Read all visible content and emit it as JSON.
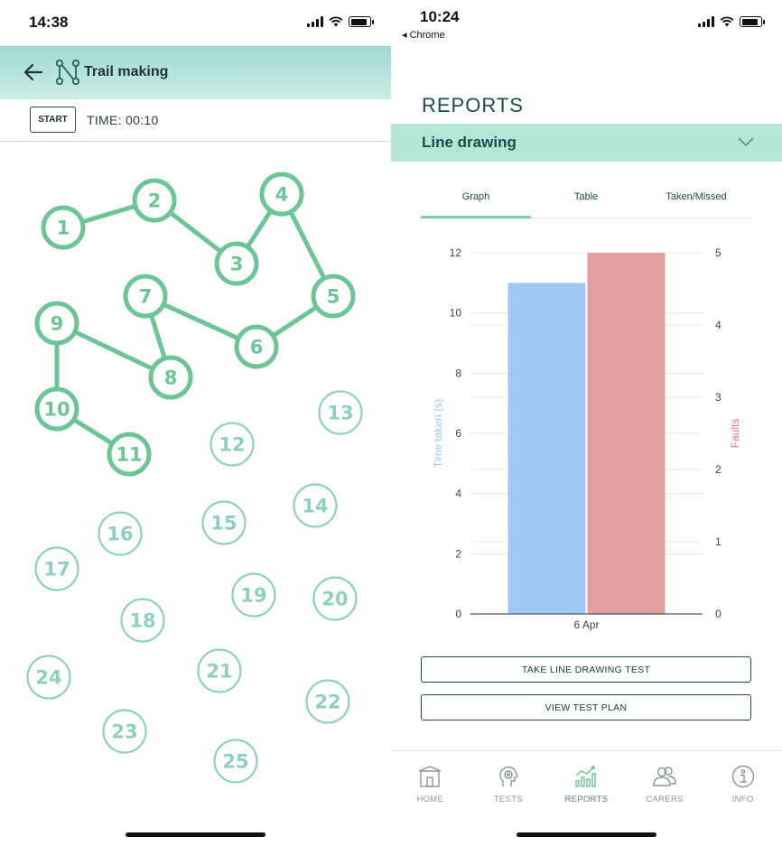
{
  "left_phone": {
    "status": {
      "time": "14:38"
    },
    "header": {
      "title": "Trail making"
    },
    "toolbar": {
      "start_label": "START",
      "timer_text": "TIME: 00:10"
    },
    "trail": {
      "connected_color": "#6cc497",
      "unconnected_color": "#8fcfc2",
      "nodes": [
        {
          "label": "1",
          "connected": true
        },
        {
          "label": "2",
          "connected": true
        },
        {
          "label": "3",
          "connected": true
        },
        {
          "label": "4",
          "connected": true
        },
        {
          "label": "5",
          "connected": true
        },
        {
          "label": "6",
          "connected": true
        },
        {
          "label": "7",
          "connected": true
        },
        {
          "label": "8",
          "connected": true
        },
        {
          "label": "9",
          "connected": true
        },
        {
          "label": "10",
          "connected": true
        },
        {
          "label": "11",
          "connected": true
        },
        {
          "label": "12",
          "connected": false
        },
        {
          "label": "13",
          "connected": false
        },
        {
          "label": "14",
          "connected": false
        },
        {
          "label": "15",
          "connected": false
        },
        {
          "label": "16",
          "connected": false
        },
        {
          "label": "17",
          "connected": false
        },
        {
          "label": "18",
          "connected": false
        },
        {
          "label": "19",
          "connected": false
        },
        {
          "label": "20",
          "connected": false
        },
        {
          "label": "21",
          "connected": false
        },
        {
          "label": "22",
          "connected": false
        },
        {
          "label": "23",
          "connected": false
        },
        {
          "label": "24",
          "connected": false
        },
        {
          "label": "25",
          "connected": false
        }
      ]
    }
  },
  "right_phone": {
    "status": {
      "time": "10:24",
      "back_app": "◂ Chrome"
    },
    "page_title": "REPORTS",
    "accordion": {
      "label": "Line drawing"
    },
    "tabs": [
      {
        "label": "Graph",
        "active": true
      },
      {
        "label": "Table",
        "active": false
      },
      {
        "label": "Taken/Missed",
        "active": false
      }
    ],
    "chart_data": {
      "type": "bar",
      "categories": [
        "6 Apr"
      ],
      "series": [
        {
          "name": "Time taken (s)",
          "axis": "left",
          "color": "#9fc8f2",
          "values": [
            11
          ]
        },
        {
          "name": "Faults",
          "axis": "right",
          "color": "#e39f9f",
          "values": [
            5
          ]
        }
      ],
      "ylabel": "Time taken (s)",
      "y2label": "Faults",
      "ylim": [
        0,
        12
      ],
      "y2lim": [
        0,
        5
      ],
      "yticks": [
        "0",
        "2",
        "4",
        "6",
        "8",
        "10",
        "12"
      ],
      "y2ticks": [
        "0",
        "1",
        "2",
        "3",
        "4",
        "5"
      ],
      "ylabel_color": "#9fc8f2",
      "y2label_color": "#e07a7a",
      "grid": true
    },
    "buttons": {
      "take_test": "TAKE LINE DRAWING TEST",
      "view_plan": "VIEW TEST PLAN"
    },
    "tabbar": [
      {
        "label": "HOME",
        "icon": "home-icon",
        "active": false
      },
      {
        "label": "TESTS",
        "icon": "head-icon",
        "active": false
      },
      {
        "label": "REPORTS",
        "icon": "chart-icon",
        "active": true
      },
      {
        "label": "CARERS",
        "icon": "people-icon",
        "active": false
      },
      {
        "label": "INFO",
        "icon": "info-icon",
        "active": false
      }
    ]
  }
}
